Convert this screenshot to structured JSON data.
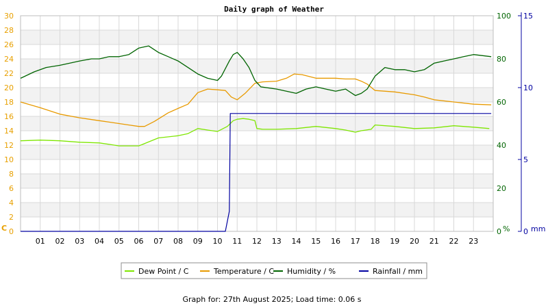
{
  "title": "Daily graph of Weather",
  "footer": "Graph for: 27th August 2025; Load time: 0.06 s",
  "colors": {
    "dew_point": "#7ee600",
    "temperature": "#e89a00",
    "humidity": "#006400",
    "rainfall": "#0000a0",
    "temp_axis": "#e8a000",
    "humidity_axis": "#006400",
    "rain_axis": "#0000a0",
    "band": "#f2f2f2",
    "grid": "#d8d8d8"
  },
  "chart_data": {
    "type": "line",
    "title": "Daily graph of Weather",
    "x_ticks": [
      "01",
      "02",
      "03",
      "04",
      "05",
      "06",
      "07",
      "08",
      "09",
      "10",
      "11",
      "12",
      "13",
      "14",
      "15",
      "16",
      "17",
      "18",
      "19",
      "20",
      "21",
      "22",
      "23"
    ],
    "xlim": [
      0,
      24
    ],
    "axes": {
      "temperature": {
        "unit": "C",
        "ylim": [
          0,
          30
        ],
        "ticks": [
          "0",
          "2",
          "4",
          "6",
          "8",
          "10",
          "12",
          "14",
          "16",
          "18",
          "20",
          "22",
          "24",
          "26",
          "28",
          "30"
        ]
      },
      "humidity": {
        "unit": "%",
        "ylim": [
          0,
          100
        ],
        "ticks": [
          "0",
          "20",
          "40",
          "60",
          "80",
          "100"
        ]
      },
      "rainfall": {
        "unit": "mm",
        "ylim": [
          0,
          15
        ],
        "ticks": [
          "0",
          "5",
          "10",
          "15"
        ]
      }
    },
    "legend_position": "bottom",
    "grid": true,
    "series": [
      {
        "name": "Dew Point / C",
        "axis": "temperature",
        "color": "#7ee600",
        "x": [
          0,
          1,
          2,
          3,
          4,
          4.5,
          5,
          5.5,
          6,
          6.2,
          7,
          8,
          8.5,
          9,
          9.5,
          10,
          10.5,
          10.8,
          11,
          11.3,
          11.6,
          11.9,
          12,
          12.3,
          13,
          14,
          15,
          16,
          16.5,
          17,
          17.3,
          17.8,
          18,
          19,
          20,
          21,
          22,
          23,
          23.8
        ],
        "y": [
          12.6,
          12.7,
          12.6,
          12.4,
          12.3,
          12.1,
          11.9,
          11.9,
          11.9,
          12.1,
          13.0,
          13.3,
          13.6,
          14.3,
          14.1,
          13.9,
          14.6,
          15.4,
          15.6,
          15.7,
          15.6,
          15.4,
          14.3,
          14.2,
          14.2,
          14.3,
          14.6,
          14.3,
          14.1,
          13.8,
          14.0,
          14.2,
          14.8,
          14.6,
          14.3,
          14.4,
          14.7,
          14.5,
          14.3
        ]
      },
      {
        "name": "Temperature / C",
        "axis": "temperature",
        "color": "#e89a00",
        "x": [
          0,
          1,
          2,
          3,
          4,
          4.5,
          5,
          5.5,
          6,
          6.3,
          6.8,
          7.5,
          8,
          8.5,
          9,
          9.5,
          10,
          10.4,
          10.7,
          11,
          11.4,
          11.9,
          12.3,
          13,
          13.5,
          13.9,
          14.3,
          15,
          16,
          16.5,
          17,
          17.3,
          17.6,
          18,
          19,
          20,
          20.5,
          21,
          22,
          23,
          23.9
        ],
        "y": [
          18.0,
          17.2,
          16.3,
          15.8,
          15.4,
          15.2,
          15.0,
          14.8,
          14.6,
          14.6,
          15.3,
          16.5,
          17.1,
          17.7,
          19.3,
          19.8,
          19.7,
          19.6,
          18.7,
          18.3,
          19.2,
          20.6,
          20.8,
          20.9,
          21.3,
          21.9,
          21.8,
          21.3,
          21.3,
          21.2,
          21.2,
          20.9,
          20.5,
          19.6,
          19.4,
          19.0,
          18.7,
          18.3,
          18.0,
          17.7,
          17.6
        ]
      },
      {
        "name": "Humidity / %",
        "axis": "humidity",
        "color": "#006400",
        "x": [
          0,
          0.7,
          1.3,
          2,
          3,
          3.6,
          4,
          4.5,
          5,
          5.5,
          6,
          6.5,
          7,
          7.5,
          8,
          8.5,
          9,
          9.5,
          10,
          10.2,
          10.6,
          10.8,
          11,
          11.3,
          11.6,
          11.9,
          12.2,
          13,
          13.5,
          14,
          14.5,
          15,
          15.5,
          16,
          16.5,
          17,
          17.3,
          17.6,
          18,
          18.5,
          19,
          19.5,
          20,
          20.5,
          21,
          21.5,
          22,
          22.5,
          23,
          23.9
        ],
        "y": [
          71,
          74,
          76,
          77,
          79,
          80,
          80,
          81,
          81,
          82,
          85,
          86,
          83,
          81,
          79,
          76,
          73,
          71,
          70,
          72,
          79,
          82,
          83,
          80,
          76,
          70,
          67,
          66,
          65,
          64,
          66,
          67,
          66,
          65,
          66,
          63,
          64,
          66,
          72,
          76,
          75,
          75,
          74,
          75,
          78,
          79,
          80,
          81,
          82,
          81
        ]
      },
      {
        "name": "Rainfall / mm",
        "axis": "rainfall",
        "color": "#0000a0",
        "x": [
          0,
          10.4,
          10.6,
          10.65,
          23.9
        ],
        "y": [
          0,
          0,
          1.4,
          8.2,
          8.2
        ]
      }
    ]
  }
}
